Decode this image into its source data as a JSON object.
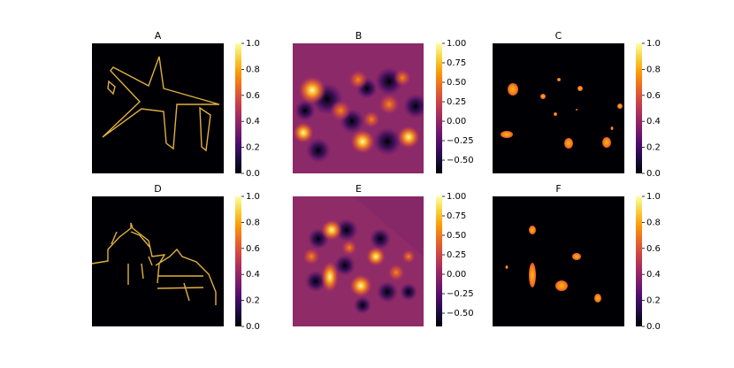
{
  "chart_data": [
    {
      "type": "image",
      "title": "A",
      "colormap": "inferno",
      "ylim": [
        0,
        1
      ],
      "yticks": [
        {
          "value": 0,
          "label": "0.0"
        },
        0.2,
        0.4,
        0.6,
        0.8,
        {
          "value": 1,
          "label": "1.0"
        }
      ]
    },
    {
      "type": "image",
      "title": "B",
      "colormap": "inferno",
      "ylim": [
        -0.67,
        1
      ],
      "yticks": [
        {
          "value": -0.5,
          "label": "−0.50"
        },
        {
          "value": -0.25,
          "label": "−0.25"
        },
        {
          "value": 0,
          "label": "0.00"
        },
        0.25,
        {
          "value": 0.5,
          "label": "0.50"
        },
        0.75,
        {
          "value": 1,
          "label": "1.00"
        }
      ]
    },
    {
      "type": "image",
      "title": "C",
      "colormap": "inferno",
      "ylim": [
        0,
        1
      ],
      "yticks": [
        {
          "value": 0,
          "label": "0.0"
        },
        0.2,
        0.4,
        0.6,
        0.8,
        {
          "value": 1,
          "label": "1.0"
        }
      ]
    },
    {
      "type": "image",
      "title": "D",
      "colormap": "inferno",
      "ylim": [
        0,
        1
      ],
      "yticks": [
        {
          "value": 0,
          "label": "0.0"
        },
        0.2,
        0.4,
        0.6,
        0.8,
        {
          "value": 1,
          "label": "1.0"
        }
      ]
    },
    {
      "type": "image",
      "title": "E",
      "colormap": "inferno",
      "ylim": [
        -0.67,
        1
      ],
      "yticks": [
        {
          "value": -0.5,
          "label": "−0.50"
        },
        {
          "value": -0.25,
          "label": "−0.25"
        },
        {
          "value": 0,
          "label": "0.00"
        },
        0.25,
        {
          "value": 0.5,
          "label": "0.50"
        },
        0.75,
        {
          "value": 1,
          "label": "1.00"
        }
      ]
    },
    {
      "type": "image",
      "title": "F",
      "colormap": "inferno",
      "ylim": [
        0,
        1
      ],
      "yticks": [
        {
          "value": 0,
          "label": "0.0"
        },
        0.2,
        0.4,
        0.6,
        0.8,
        {
          "value": 1,
          "label": "1.0"
        }
      ]
    }
  ]
}
